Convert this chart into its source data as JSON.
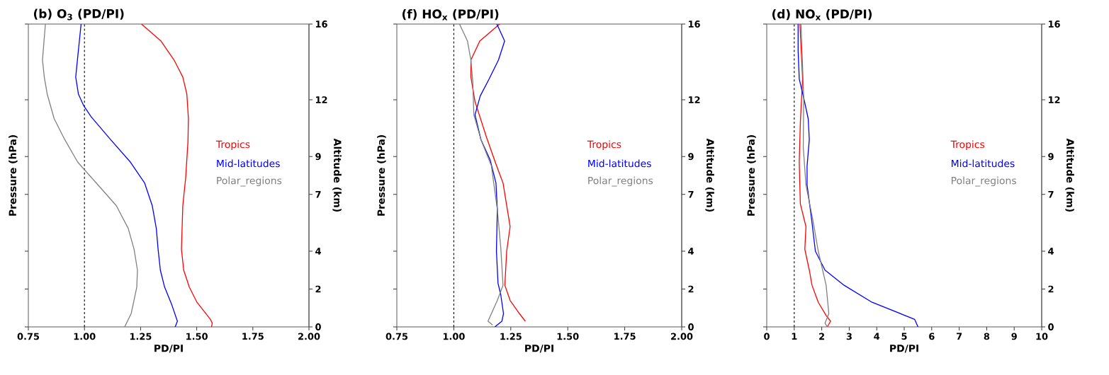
{
  "chart_data": [
    {
      "type": "line",
      "title": "(b) O$_{3}$ (PD/PI)",
      "xlabel": "PD/PI",
      "ylabel": "Pressure (hPa)",
      "y2label": "Altitude (km)",
      "xlim": [
        0.75,
        2.0
      ],
      "xticks": [
        {
          "value": 0.75,
          "label": "0.75"
        },
        {
          "value": 1.0,
          "label": "1.00"
        },
        {
          "value": 1.25,
          "label": "1.25"
        },
        {
          "value": 1.5,
          "label": "1.50"
        },
        {
          "value": 1.75,
          "label": "1.75"
        },
        {
          "value": 2.0,
          "label": "2.00"
        }
      ],
      "y2lim": [
        0,
        16
      ],
      "y2ticks": [
        0,
        2,
        4,
        7,
        9,
        12,
        16
      ],
      "legend": "right",
      "marker": "none",
      "ref_lines": [
        {
          "axis": "x",
          "value": 1.0,
          "color": "#000000",
          "line_style": "dashed"
        }
      ],
      "series": [
        {
          "name": "Tropics",
          "color": "#ff0000",
          "axis": "y2",
          "x": [
            1.254,
            1.341,
            1.399,
            1.438,
            1.456,
            1.463,
            1.461,
            1.451,
            1.438,
            1.432,
            1.442,
            1.467,
            1.501,
            1.561,
            1.569,
            1.566
          ],
          "values": [
            16,
            15.1,
            14.1,
            13.2,
            12.3,
            11.0,
            9.8,
            7.9,
            6.4,
            4.1,
            3.0,
            2.1,
            1.3,
            0.4,
            0.2,
            0
          ]
        },
        {
          "name": "Mid-latitudes",
          "color": "#0000ff",
          "axis": "y2",
          "x": [
            0.985,
            0.972,
            0.961,
            0.973,
            0.996,
            1.03,
            1.116,
            1.205,
            1.268,
            1.302,
            1.32,
            1.328,
            1.338,
            1.357,
            1.388,
            1.414,
            1.404
          ],
          "values": [
            16,
            14.5,
            13.2,
            12.3,
            11.7,
            11.1,
            9.9,
            8.7,
            7.6,
            6.4,
            5.2,
            4.1,
            3.0,
            2.1,
            1.2,
            0.3,
            0
          ]
        },
        {
          "name": "Polar_regions",
          "color": "#808080",
          "axis": "y2",
          "x": [
            0.826,
            0.813,
            0.821,
            0.834,
            0.865,
            0.912,
            0.97,
            1.053,
            1.142,
            1.195,
            1.221,
            1.236,
            1.233,
            1.208,
            1.179
          ],
          "values": [
            16,
            14.1,
            13.2,
            12.3,
            11.0,
            9.9,
            8.7,
            7.6,
            6.4,
            5.2,
            4.1,
            3.0,
            2.1,
            0.7,
            0
          ]
        }
      ]
    },
    {
      "type": "line",
      "title": "(f) HO$_{x}$ (PD/PI)",
      "xlabel": "PD/PI",
      "ylabel": "Pressure (hPa)",
      "y2label": "Altitude (km)",
      "xlim": [
        0.75,
        2.0
      ],
      "xticks": [
        {
          "value": 0.75,
          "label": "0.75"
        },
        {
          "value": 1.0,
          "label": "1.00"
        },
        {
          "value": 1.25,
          "label": "1.25"
        },
        {
          "value": 1.5,
          "label": "1.50"
        },
        {
          "value": 1.75,
          "label": "1.75"
        },
        {
          "value": 2.0,
          "label": "2.00"
        }
      ],
      "y2lim": [
        0,
        16
      ],
      "y2ticks": [
        0,
        2,
        4,
        7,
        9,
        12,
        16
      ],
      "legend": "right",
      "marker": "none",
      "ref_lines": [
        {
          "axis": "x",
          "value": 1.0,
          "color": "#000000",
          "line_style": "dashed"
        }
      ],
      "series": [
        {
          "name": "Tropics",
          "color": "#ff0000",
          "axis": "y2",
          "x": [
            1.201,
            1.114,
            1.075,
            1.075,
            1.093,
            1.144,
            1.185,
            1.216,
            1.247,
            1.232,
            1.224,
            1.247,
            1.288,
            1.314
          ],
          "values": [
            16,
            15.1,
            14.1,
            13.2,
            11.9,
            10.0,
            8.6,
            7.6,
            5.3,
            4.0,
            2.2,
            1.4,
            0.7,
            0.3
          ]
        },
        {
          "name": "Mid-latitudes",
          "color": "#0000ff",
          "axis": "y2",
          "x": [
            1.189,
            1.223,
            1.196,
            1.155,
            1.116,
            1.093,
            1.119,
            1.16,
            1.185,
            1.191,
            1.187,
            1.194,
            1.206,
            1.218,
            1.211,
            1.18
          ],
          "values": [
            16,
            15.1,
            14.1,
            13.1,
            12.2,
            11.2,
            9.9,
            8.8,
            7.6,
            6.2,
            4.0,
            2.3,
            1.7,
            0.7,
            0.3,
            0
          ]
        },
        {
          "name": "Polar_regions",
          "color": "#808080",
          "axis": "y2",
          "x": [
            1.025,
            1.06,
            1.075,
            1.083,
            1.088,
            1.119,
            1.165,
            1.191,
            1.206,
            1.216,
            1.191,
            1.15,
            1.17
          ],
          "values": [
            16,
            15.1,
            14.1,
            13.0,
            11.2,
            9.9,
            8.5,
            6.2,
            4.2,
            2.2,
            1.4,
            0.3,
            0.1
          ]
        }
      ]
    },
    {
      "type": "line",
      "title": "(d) NO$_{x}$ (PD/PI)",
      "xlabel": "PD/PI",
      "ylabel": "Pressure (hPa)",
      "y2label": "Altitude (km)",
      "xlim": [
        0,
        10
      ],
      "xticks": [
        0,
        1,
        2,
        3,
        4,
        5,
        6,
        7,
        8,
        9,
        10
      ],
      "y2lim": [
        0,
        16
      ],
      "y2ticks": [
        0,
        2,
        4,
        7,
        9,
        12,
        16
      ],
      "legend": "right",
      "marker": "none",
      "ref_lines": [
        {
          "axis": "x",
          "value": 1,
          "color": "#000000",
          "line_style": "dashed"
        }
      ],
      "series": [
        {
          "name": "Tropics",
          "color": "#ff0000",
          "axis": "y2",
          "x": [
            1.206,
            1.304,
            1.222,
            1.182,
            1.222,
            1.426,
            1.385,
            1.548,
            1.646,
            1.874,
            2.16,
            2.323,
            2.2
          ],
          "values": [
            16,
            13.1,
            10.8,
            8.7,
            6.5,
            5.3,
            4.1,
            3.0,
            2.2,
            1.3,
            0.6,
            0.3,
            0
          ]
        },
        {
          "name": "Mid-latitudes",
          "color": "#0000ff",
          "axis": "y2",
          "x": [
            1.141,
            1.141,
            1.182,
            1.345,
            1.508,
            1.548,
            1.467,
            1.467,
            1.63,
            1.769,
            2.119,
            2.812,
            3.83,
            5.379,
            5.501
          ],
          "values": [
            16,
            14.6,
            13.1,
            12.1,
            11.0,
            9.9,
            8.5,
            7.5,
            5.7,
            4.0,
            3.0,
            2.2,
            1.3,
            0.4,
            0
          ]
        },
        {
          "name": "Polar_regions",
          "color": "#808080",
          "axis": "y2",
          "x": [
            1.247,
            1.345,
            1.328,
            1.426,
            1.671,
            1.874,
            2.16,
            2.258,
            2.119,
            2.2
          ],
          "values": [
            16,
            12.1,
            9.5,
            7.5,
            5.7,
            4.0,
            2.2,
            0.7,
            0.2,
            0
          ]
        }
      ]
    }
  ]
}
